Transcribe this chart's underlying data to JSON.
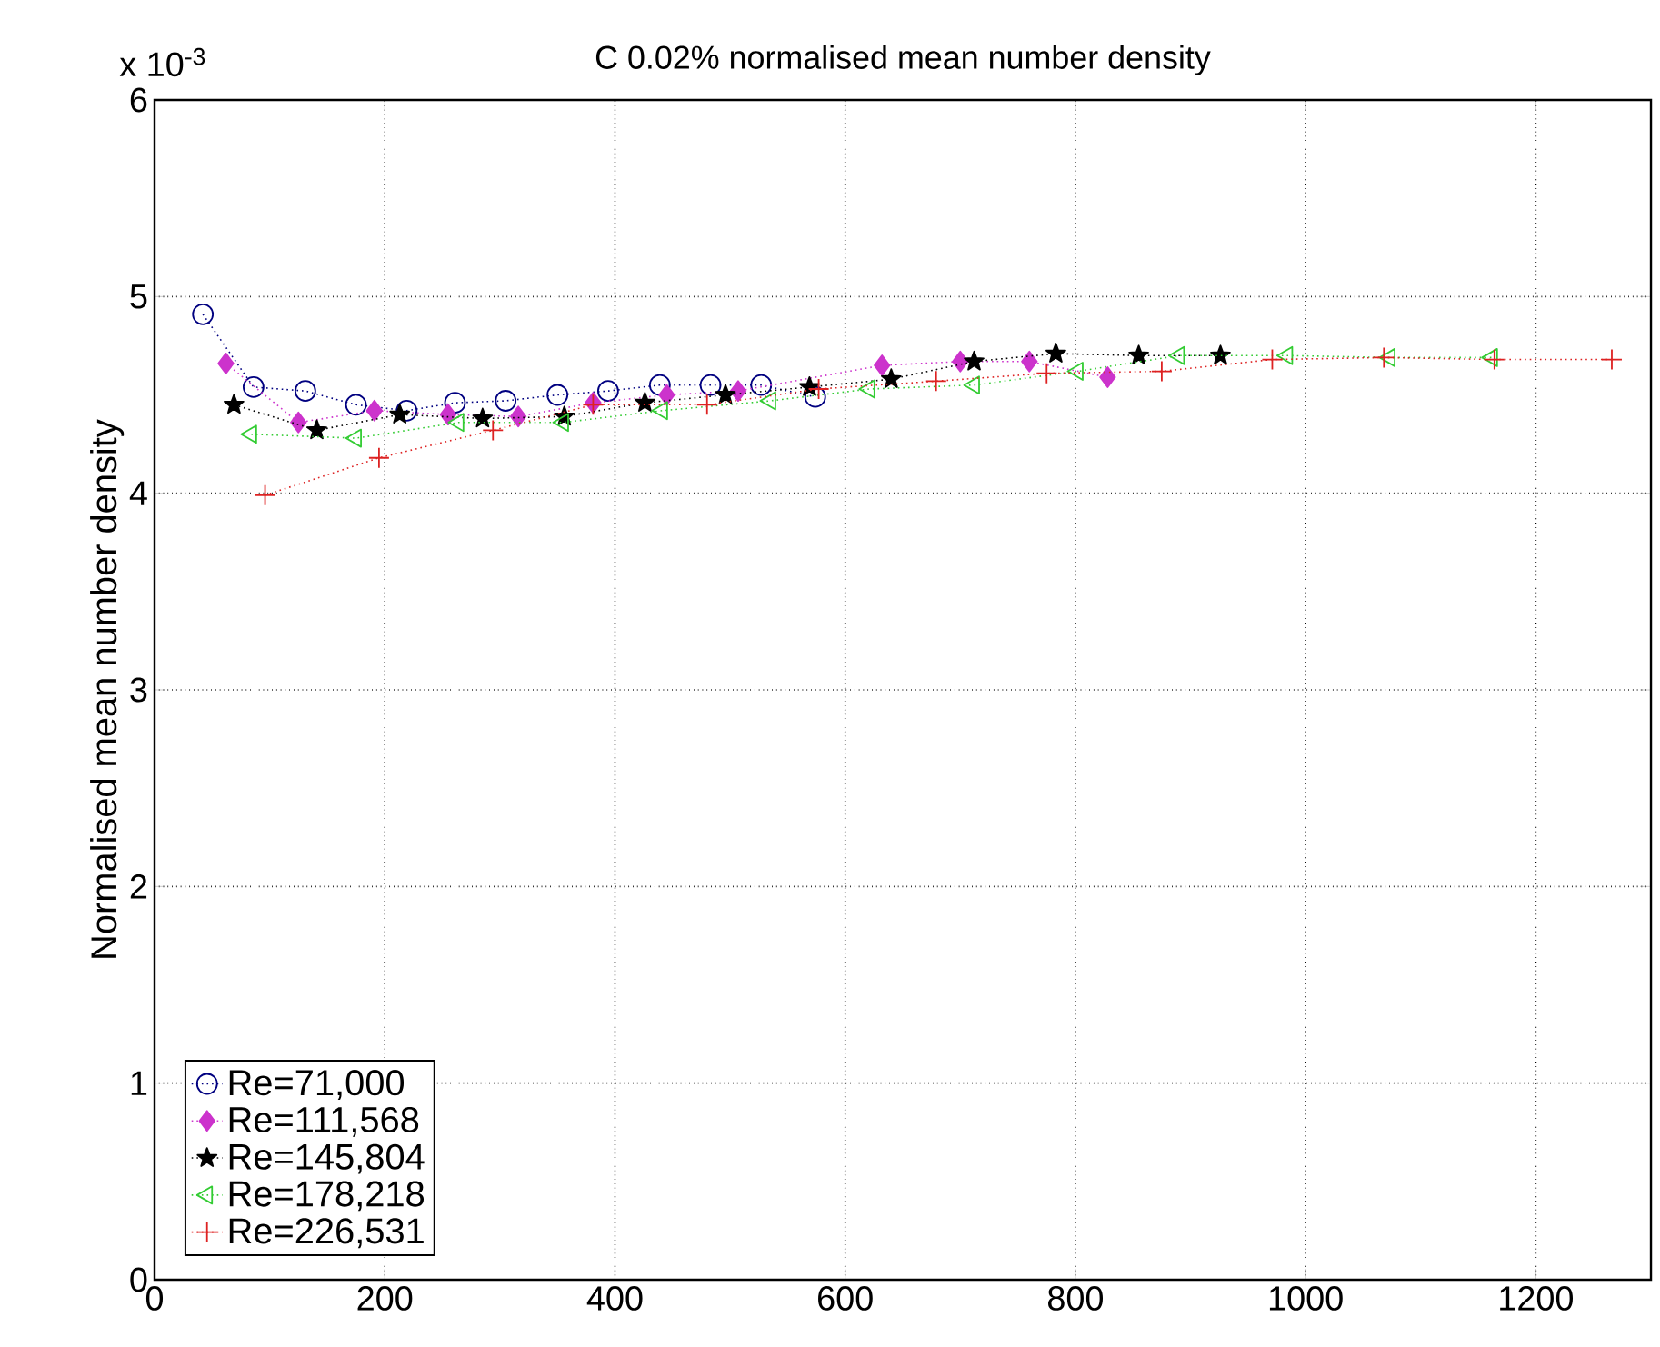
{
  "chart_data": {
    "type": "line",
    "title": "C 0.02% normalised mean number density",
    "ylabel": "Normalised mean number density",
    "annotations": [
      "x 10$^{-3}$"
    ],
    "xlim": [
      0,
      1300
    ],
    "xticks": [
      0,
      200,
      400,
      600,
      800,
      1000,
      1200
    ],
    "ylim": [
      0,
      6
    ],
    "yticks": [
      0,
      1,
      2,
      3,
      4,
      5,
      6
    ],
    "grid": true,
    "legend": "bottom left",
    "line_style": "dotted",
    "series": [
      {
        "name": "Re=71,000",
        "color": "#000080",
        "marker": "circle",
        "x": [
          42,
          86,
          131,
          175,
          219,
          261,
          305,
          350,
          394,
          439,
          483,
          527,
          574
        ],
        "values": [
          4.91,
          4.54,
          4.52,
          4.45,
          4.42,
          4.46,
          4.47,
          4.5,
          4.52,
          4.55,
          4.55,
          4.55,
          4.49
        ]
      },
      {
        "name": "Re=111,568",
        "color": "#cc33cc",
        "marker": "diamond",
        "x": [
          62,
          125,
          191,
          255,
          316,
          381,
          445,
          507,
          570,
          632,
          700,
          760,
          828
        ],
        "values": [
          4.66,
          4.36,
          4.42,
          4.4,
          4.39,
          4.46,
          4.5,
          4.52,
          null,
          4.65,
          4.67,
          4.67,
          4.59
        ]
      },
      {
        "name": "Re=145,804",
        "color": "#000000",
        "marker": "star",
        "x": [
          69,
          141,
          213,
          285,
          356,
          426,
          496,
          569,
          640,
          712,
          783,
          855,
          926
        ],
        "values": [
          4.45,
          4.32,
          4.4,
          4.38,
          4.39,
          4.46,
          4.5,
          4.54,
          4.58,
          4.67,
          4.71,
          4.7,
          4.7
        ]
      },
      {
        "name": "Re=178,218",
        "color": "#33cc33",
        "marker": "triangle",
        "x": [
          84,
          175,
          264,
          355,
          441,
          535,
          621,
          712,
          802,
          890,
          984,
          1073,
          1162
        ],
        "values": [
          4.3,
          4.28,
          4.36,
          4.36,
          4.42,
          4.47,
          4.53,
          4.55,
          4.62,
          4.7,
          4.7,
          4.69,
          4.69
        ]
      },
      {
        "name": "Re=226,531",
        "color": "#dd2222",
        "marker": "cross",
        "x": [
          96,
          195,
          294,
          381,
          480,
          577,
          679,
          775,
          875,
          971,
          1068,
          1164,
          1266
        ],
        "values": [
          3.99,
          4.18,
          4.32,
          4.45,
          4.45,
          4.53,
          4.57,
          4.61,
          4.62,
          4.68,
          4.69,
          4.68,
          4.68
        ]
      }
    ]
  }
}
